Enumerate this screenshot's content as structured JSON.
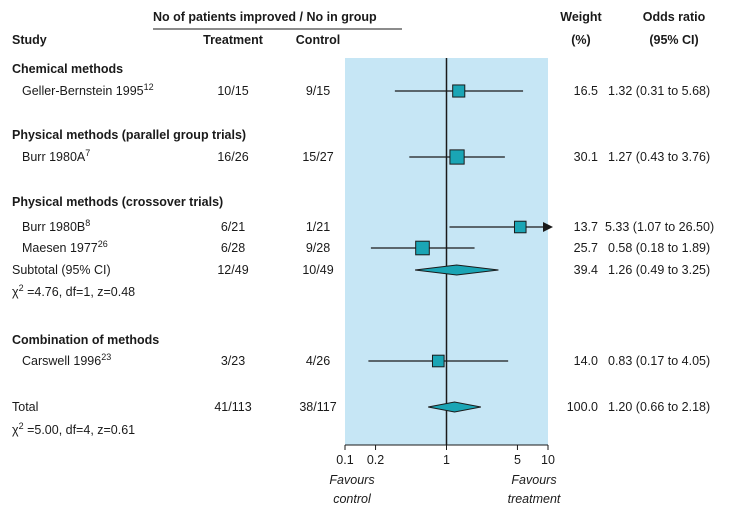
{
  "header": {
    "group_heading": "No of patients improved / No in group",
    "study": "Study",
    "treatment": "Treatment",
    "control": "Control",
    "weight_line1": "Weight",
    "weight_line2": "(%)",
    "or_line1": "Odds ratio",
    "or_line2": "(95% CI)"
  },
  "sections": [
    {
      "title": "Chemical methods"
    },
    {
      "title": "Physical methods (parallel group trials)"
    },
    {
      "title": "Physical methods (crossover trials)"
    },
    {
      "title": "Combination of methods"
    }
  ],
  "studies": [
    {
      "name": "Geller-Bernstein 1995",
      "ref": "12",
      "treatment": "10/15",
      "control": "9/15",
      "weight": "16.5",
      "ci_text": "1.32 (0.31 to 5.68)"
    },
    {
      "name": "Burr 1980A",
      "ref": "7",
      "treatment": "16/26",
      "control": "15/27",
      "weight": "30.1",
      "ci_text": "1.27 (0.43 to 3.76)"
    },
    {
      "name": "Burr 1980B",
      "ref": "8",
      "treatment": "6/21",
      "control": "1/21",
      "weight": "13.7",
      "ci_text": "5.33 (1.07 to 26.50)"
    },
    {
      "name": "Maesen 1977",
      "ref": "26",
      "treatment": "6/28",
      "control": "9/28",
      "weight": "25.7",
      "ci_text": "0.58 (0.18 to 1.89)"
    },
    {
      "name": "Carswell 1996",
      "ref": "23",
      "treatment": "3/23",
      "control": "4/26",
      "weight": "14.0",
      "ci_text": "0.83 (0.17 to 4.05)"
    }
  ],
  "subtotal": {
    "name": "Subtotal (95% CI)",
    "treatment": "12/49",
    "control": "10/49",
    "weight": "39.4",
    "ci_text": "1.26 (0.49 to 3.25)",
    "stat": "=4.76, df=1, z=0.48"
  },
  "total": {
    "name": "Total",
    "treatment": "41/113",
    "control": "38/117",
    "weight": "100.0",
    "ci_text": "1.20 (0.66 to 2.18)",
    "stat": "=5.00, df=4, z=0.61"
  },
  "chi_symbol": "χ",
  "chi_exp": "2",
  "axis": {
    "ticks": [
      "0.1",
      "0.2",
      "1",
      "5",
      "10"
    ],
    "favours_left_1": "Favours",
    "favours_left_2": "control",
    "favours_right_1": "Favours",
    "favours_right_2": "treatment"
  },
  "colors": {
    "band": "#c6e6f5",
    "marker": "#1aa5b5",
    "line": "#1a1a1a"
  },
  "chart_data": {
    "type": "forest",
    "scale": "log",
    "xlim": [
      0.1,
      10
    ],
    "ticks": [
      0.1,
      0.2,
      1,
      5,
      10
    ],
    "reference_line": 1,
    "points": [
      {
        "study": "Geller-Bernstein 1995",
        "or": 1.32,
        "lo": 0.31,
        "hi": 5.68,
        "weight": 16.5
      },
      {
        "study": "Burr 1980A",
        "or": 1.27,
        "lo": 0.43,
        "hi": 3.76,
        "weight": 30.1
      },
      {
        "study": "Burr 1980B",
        "or": 5.33,
        "lo": 1.07,
        "hi": 26.5,
        "weight": 13.7
      },
      {
        "study": "Maesen 1977",
        "or": 0.58,
        "lo": 0.18,
        "hi": 1.89,
        "weight": 25.7
      },
      {
        "study": "Carswell 1996",
        "or": 0.83,
        "lo": 0.17,
        "hi": 4.05,
        "weight": 14.0
      }
    ],
    "pooled": [
      {
        "label": "Subtotal (95% CI)",
        "or": 1.26,
        "lo": 0.49,
        "hi": 3.25
      },
      {
        "label": "Total",
        "or": 1.2,
        "lo": 0.66,
        "hi": 2.18
      }
    ]
  }
}
